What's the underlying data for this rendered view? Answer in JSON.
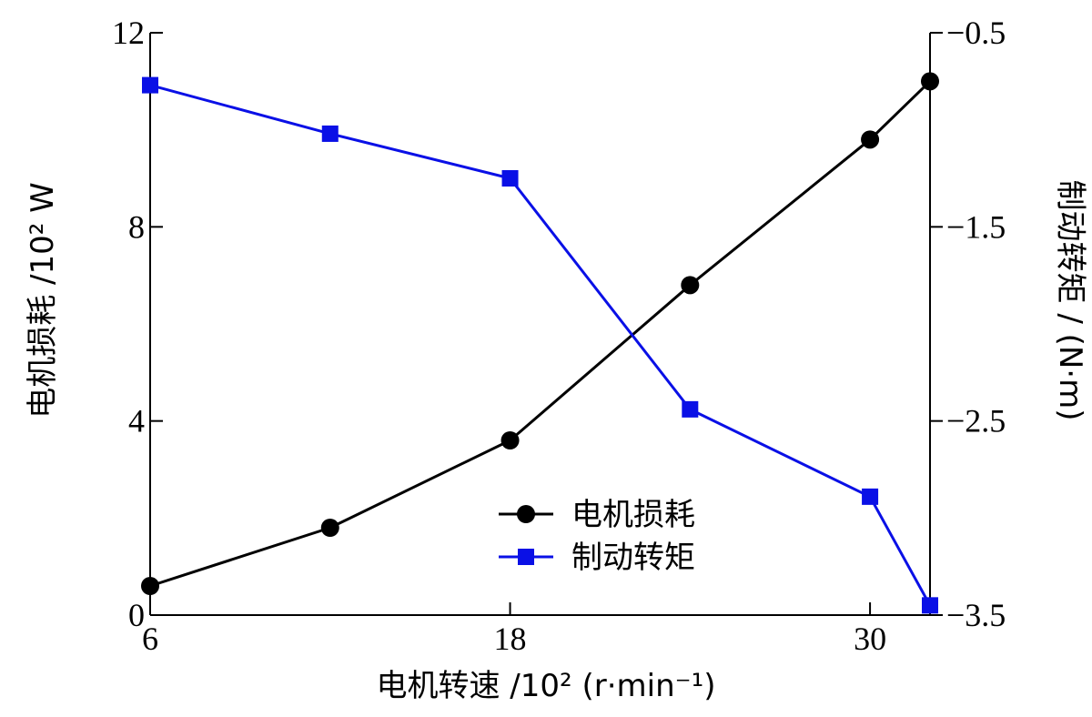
{
  "chart_data": {
    "type": "line",
    "x": [
      6,
      12,
      18,
      24,
      30,
      32
    ],
    "series": [
      {
        "name": "电机损耗",
        "axis": "left",
        "values": [
          0.6,
          1.8,
          3.6,
          6.8,
          9.8,
          11.0
        ],
        "color": "#000000",
        "marker": "circle"
      },
      {
        "name": "制动转矩",
        "axis": "right",
        "values": [
          -0.77,
          -1.02,
          -1.25,
          -2.44,
          -2.89,
          -3.45
        ],
        "color": "#0a10e6",
        "marker": "square"
      }
    ],
    "xlabel": "电机转速 /10² (r·min⁻¹)",
    "ylabel_left": "电机损耗 /10² W",
    "ylabel_right": "制动转矩 / (N·m)",
    "xlim": [
      6,
      32
    ],
    "ylim_left": [
      0,
      12
    ],
    "ylim_right": [
      -3.5,
      -0.5
    ],
    "xticks": [
      6,
      18,
      30
    ],
    "xtick_labels": [
      "6",
      "18",
      "30"
    ],
    "yticks_left": [
      0,
      4,
      8,
      12
    ],
    "ytick_labels_left": [
      "0",
      "4",
      "8",
      "12"
    ],
    "yticks_right": [
      -0.5,
      -1.5,
      -2.5,
      -3.5
    ],
    "ytick_labels_right": [
      "−0.5",
      "−1.5",
      "−2.5",
      "−3.5"
    ],
    "grid": false,
    "legend_position": "bottom-center"
  }
}
